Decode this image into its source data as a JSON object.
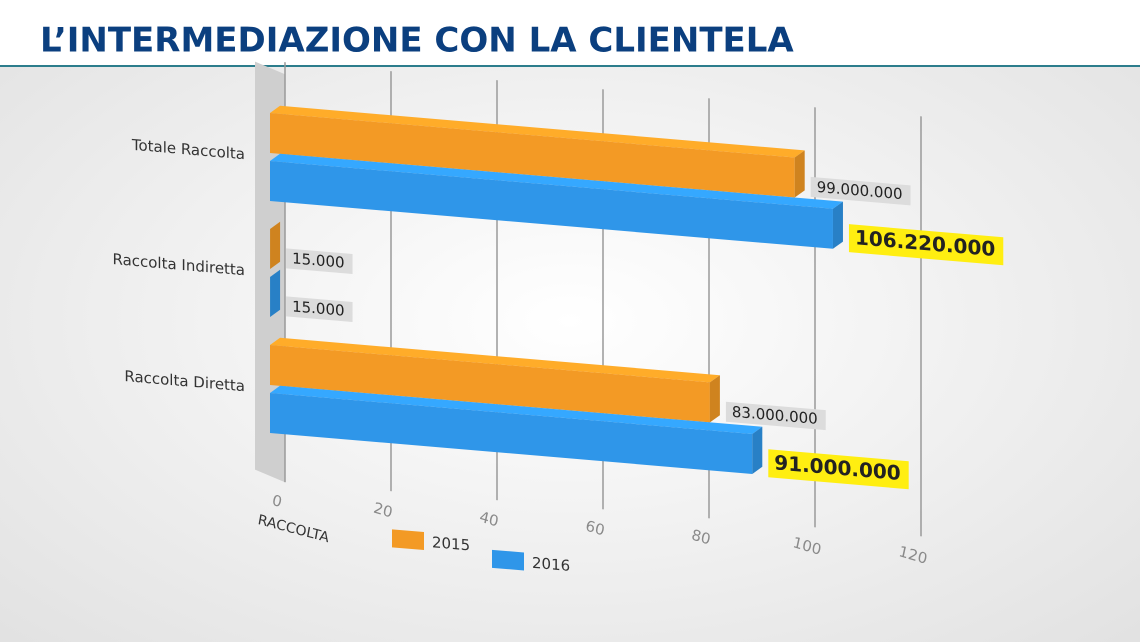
{
  "header": {
    "title": "L’INTERMEDIAZIONE CON LA CLIENTELA"
  },
  "chart_data": {
    "type": "bar",
    "orientation": "horizontal",
    "categories": [
      "Totale Raccolta",
      "Raccolta Indiretta",
      "Raccolta Diretta"
    ],
    "series": [
      {
        "name": "2015",
        "color": "#f39a25",
        "values": [
          99,
          0.015,
          83
        ],
        "value_labels": [
          "99.000.000",
          "15.000",
          "83.000.000"
        ]
      },
      {
        "name": "2016",
        "color": "#2f96e9",
        "values": [
          106.22,
          0.015,
          91
        ],
        "value_labels": [
          "106.220.000",
          "15.000",
          "91.000.000"
        ]
      }
    ],
    "x_label": "RACCOLTA",
    "xlim": [
      0,
      120
    ],
    "xticks": [
      0,
      20,
      40,
      60,
      80,
      100,
      120
    ],
    "grid": true
  }
}
